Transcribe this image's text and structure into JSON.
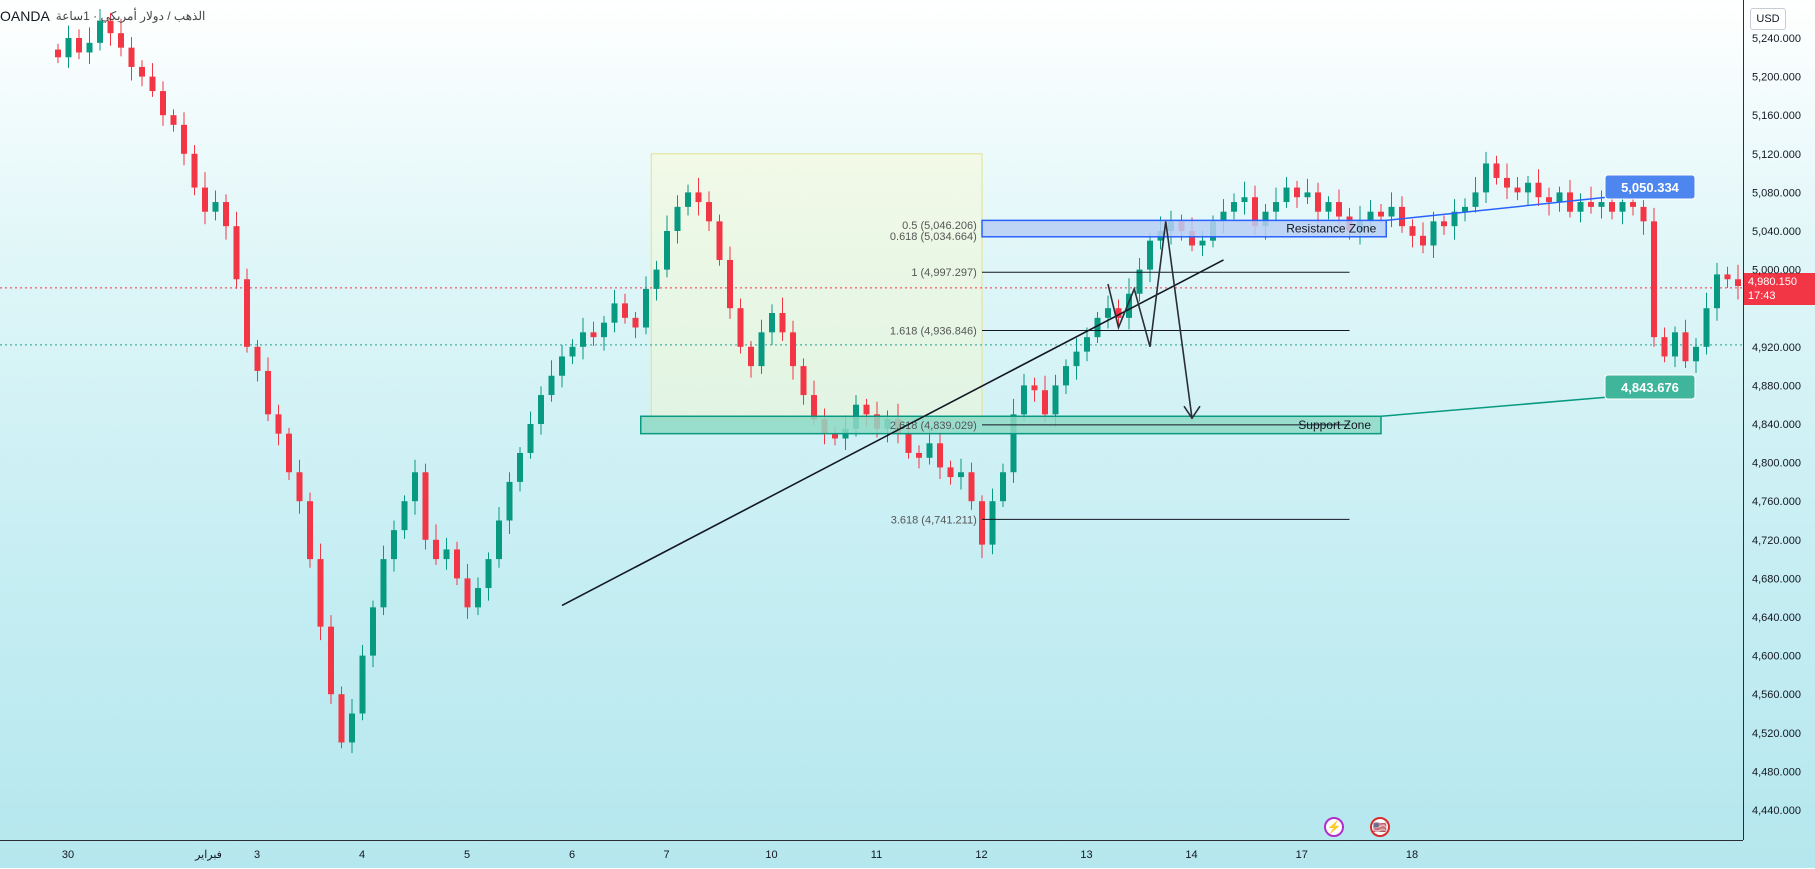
{
  "header": {
    "symbol": "OANDA",
    "description": "الذهب / دولار أمريكي · 1ساعة"
  },
  "price_axis": {
    "currency": "USD",
    "last_price": "4,980.150",
    "countdown": "17:43"
  },
  "events": [
    {
      "icon": "lightning-icon",
      "glyph": "⚡"
    },
    {
      "icon": "us-flag-icon",
      "glyph": "🇺🇸"
    }
  ],
  "colors": {
    "up": "#089981",
    "down": "#f23645",
    "resistance_fill": "#b8cff5",
    "resistance_border": "#2962ff",
    "support_fill": "#8fd9c6",
    "support_border": "#089981",
    "resistance_label_bg": "#4e86f0",
    "support_label_bg": "#3fb59c"
  },
  "chart_data": {
    "type": "candlestick",
    "ylim": [
      4400,
      5260
    ],
    "y_ticks": [
      5240,
      5200,
      5160,
      5120,
      5080,
      5040,
      5000,
      4920,
      4880,
      4840,
      4800,
      4760,
      4720,
      4680,
      4640,
      4600,
      4560,
      4520,
      4480,
      4440
    ],
    "y_tick_labels": [
      "5,240.000",
      "5,200.000",
      "5,160.000",
      "5,120.000",
      "5,080.000",
      "5,040.000",
      "5,000.000",
      "4,920.000",
      "4,880.000",
      "4,840.000",
      "4,800.000",
      "4,760.000",
      "4,720.000",
      "4,680.000",
      "4,640.000",
      "4,600.000",
      "4,560.000",
      "4,520.000",
      "4,480.000",
      "4,440.000"
    ],
    "x_ticks": [
      {
        "label": "30",
        "slot": 0
      },
      {
        "label": "فبراير",
        "slot": 11
      },
      {
        "label": "3",
        "slot": 18
      },
      {
        "label": "4",
        "slot": 28
      },
      {
        "label": "5",
        "slot": 38
      },
      {
        "label": "6",
        "slot": 48
      },
      {
        "label": "7",
        "slot": 57
      },
      {
        "label": "10",
        "slot": 67
      },
      {
        "label": "11",
        "slot": 77
      },
      {
        "label": "12",
        "slot": 87
      },
      {
        "label": "13",
        "slot": 97
      },
      {
        "label": "14",
        "slot": 107
      },
      {
        "label": "17",
        "slot": 117.5
      },
      {
        "label": "18",
        "slot": 128
      }
    ],
    "candles_close": [
      5220,
      5240,
      5225,
      5235,
      5258,
      5245,
      5230,
      5210,
      5200,
      5185,
      5160,
      5150,
      5120,
      5085,
      5060,
      5070,
      5045,
      4990,
      4920,
      4895,
      4850,
      4830,
      4790,
      4760,
      4700,
      4630,
      4560,
      4510,
      4540,
      4600,
      4650,
      4700,
      4730,
      4760,
      4790,
      4720,
      4700,
      4710,
      4680,
      4650,
      4670,
      4700,
      4740,
      4780,
      4810,
      4840,
      4870,
      4890,
      4910,
      4920,
      4935,
      4930,
      4945,
      4965,
      4950,
      4940,
      4980,
      5000,
      5040,
      5065,
      5080,
      5070,
      5050,
      5010,
      4960,
      4920,
      4900,
      4935,
      4955,
      4935,
      4900,
      4870,
      4845,
      4830,
      4825,
      4835,
      4860,
      4850,
      4835,
      4845,
      4830,
      4810,
      4805,
      4820,
      4795,
      4785,
      4790,
      4760,
      4715,
      4760,
      4790,
      4850,
      4880,
      4875,
      4850,
      4880,
      4900,
      4915,
      4930,
      4950,
      4960,
      4950,
      4975,
      5000,
      5030,
      5040,
      5050,
      5040,
      5025,
      5030,
      5050,
      5060,
      5070,
      5075,
      5045,
      5060,
      5070,
      5085,
      5075,
      5080,
      5060,
      5070,
      5055,
      5040,
      5050,
      5060,
      5055,
      5065,
      5045,
      5035,
      5025,
      5050,
      5045,
      5060,
      5065,
      5080,
      5110,
      5095,
      5085,
      5080,
      5090,
      5075,
      5070,
      5080,
      5060,
      5070,
      5065,
      5070,
      5060,
      5070,
      5065,
      5050,
      4930,
      4910,
      4935,
      4905,
      4920,
      4960,
      4995,
      4990,
      4983
    ],
    "fibonacci": [
      {
        "label": "0.5 (5,046.206)",
        "value": 5046.206
      },
      {
        "label": "0.618 (5,034.664)",
        "value": 5034.664
      },
      {
        "label": "1 (4,997.297)",
        "value": 4997.297
      },
      {
        "label": "1.618 (4,936.846)",
        "value": 4936.846
      },
      {
        "label": "2.618 (4,839.029)",
        "value": 4839.029
      },
      {
        "label": "3.618 (4,741.211)",
        "value": 4741.211
      }
    ],
    "zones": [
      {
        "name": "Resistance Zone",
        "top": 5051,
        "bottom": 5034,
        "tag": "5,050.334"
      },
      {
        "name": "Support Zone",
        "top": 4848,
        "bottom": 4830,
        "tag": "4,843.676"
      }
    ],
    "trendline": {
      "from": {
        "slot": 48,
        "price": 4652
      },
      "to": {
        "slot": 111,
        "price": 5010
      }
    },
    "projection_path": [
      {
        "slot": 100,
        "price": 4985
      },
      {
        "slot": 101,
        "price": 4940
      },
      {
        "slot": 102.5,
        "price": 4980
      },
      {
        "slot": 104,
        "price": 4920
      },
      {
        "slot": 105.5,
        "price": 5050
      },
      {
        "slot": 108,
        "price": 4846
      }
    ],
    "horizontal_dotted": [
      4981,
      4922
    ]
  }
}
